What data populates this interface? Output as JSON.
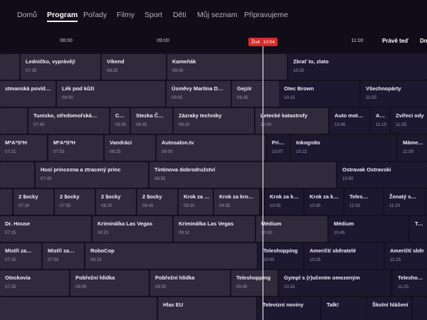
{
  "nav": {
    "items": [
      "Domů",
      "Program",
      "Pořady",
      "Filmy",
      "Sport",
      "Děti",
      "Můj seznam",
      "Připravujeme"
    ],
    "active": "Program"
  },
  "timebar": {
    "ticks": [
      "08:00",
      "09:00",
      "11:00"
    ],
    "live_label": "Živě",
    "live_time": "10:04",
    "now_button": "Právě teď",
    "next_button": "Dne"
  },
  "rows": [
    [
      {
        "title": "",
        "time": ""
      },
      {
        "title": "Ledničko, vyprávěj!",
        "time": "07:35"
      },
      {
        "title": "Víkend",
        "time": "08:25"
      },
      {
        "title": "Kameňák",
        "time": "09:05"
      },
      {
        "title": "Zkrať to, zlato",
        "time": "10:20"
      }
    ],
    [
      {
        "title": "stmanská povíd…",
        "time": ""
      },
      {
        "title": "Lék pod kůží",
        "time": "08:00"
      },
      {
        "title": "Úsměvy Martina D…",
        "time": "09:05"
      },
      {
        "title": "Gejzír",
        "time": "09:35"
      },
      {
        "title": "Otec Brown",
        "time": "10:15"
      },
      {
        "title": "Všechnopárty",
        "time": "11:05"
      }
    ],
    [
      {
        "title": "",
        "time": ""
      },
      {
        "title": "Tunisko, středomořská…",
        "time": "07:40"
      },
      {
        "title": "Cy…",
        "time": "08:30"
      },
      {
        "title": "Stezka Č…",
        "time": "08:45"
      },
      {
        "title": "Zázraky techniky",
        "time": "09:10"
      },
      {
        "title": "Letecké katastrofy",
        "time": "10:00"
      },
      {
        "title": "Auto mot…",
        "time": "10:45"
      },
      {
        "title": "Au…",
        "time": "11:10"
      },
      {
        "title": "Zvířecí ody",
        "time": "11:25"
      }
    ],
    [
      {
        "title": "M*A*S*H",
        "time": "07:21"
      },
      {
        "title": "M*A*S*H",
        "time": "07:53"
      },
      {
        "title": "Vandráci",
        "time": "08:25"
      },
      {
        "title": "Autosalon.tv",
        "time": "09:00"
      },
      {
        "title": "Pri…",
        "time": "10:07"
      },
      {
        "title": "Inkognito",
        "time": "10:22"
      },
      {
        "title": "Máme rád",
        "time": "11:30"
      }
    ],
    [
      {
        "title": "",
        "time": ""
      },
      {
        "title": "Husí princezna a ztracený princ",
        "time": "07:45"
      },
      {
        "title": "Tintinova dobrodružství",
        "time": "08:55"
      },
      {
        "title": "Ostravak Ostravski",
        "time": "10:50"
      }
    ],
    [
      {
        "title": "",
        "time": ""
      },
      {
        "title": "2 $ocky",
        "time": "07:30"
      },
      {
        "title": "2 $ocky",
        "time": "07:55"
      },
      {
        "title": "2 $ocky",
        "time": "08:20"
      },
      {
        "title": "2 $ocky",
        "time": "08:45"
      },
      {
        "title": "Krok za k…",
        "time": "09:10"
      },
      {
        "title": "Krok za krok…",
        "time": "09:35"
      },
      {
        "title": "Krok za k…",
        "time": "10:05"
      },
      {
        "title": "Krok za krok…",
        "time": "10:30"
      },
      {
        "title": "Teles…",
        "time": "11:00"
      },
      {
        "title": "Ženatý s…",
        "time": "11:20"
      },
      {
        "title": "Ženatý s",
        "time": ""
      }
    ],
    [
      {
        "title": "Dr. House",
        "time": "07:25"
      },
      {
        "title": "Kriminálka Las Vegas",
        "time": "08:20"
      },
      {
        "title": "Kriminálka Las Vegas",
        "time": "09:10"
      },
      {
        "title": "Médium",
        "time": "10:00"
      },
      {
        "title": "Médium",
        "time": "10:45"
      },
      {
        "title": "Teles",
        "time": ""
      }
    ],
    [
      {
        "title": "Mistři za…",
        "time": "07:25"
      },
      {
        "title": "Mistři za…",
        "time": "07:50"
      },
      {
        "title": "RoboCop",
        "time": "08:15"
      },
      {
        "title": "Teleshopping",
        "time": "10:00"
      },
      {
        "title": "Američtí sběratelé",
        "time": "10:25"
      },
      {
        "title": "Američtí sběr",
        "time": "11:25"
      }
    ],
    [
      {
        "title": "Oteckovia",
        "time": "07:25"
      },
      {
        "title": "Pobřežní hlídka",
        "time": "08:05"
      },
      {
        "title": "Pobřežní hlídka",
        "time": "08:55"
      },
      {
        "title": "Teleshopping",
        "time": "09:45"
      },
      {
        "title": "Gympl s (r)učením omezeným",
        "time": "10:15"
      },
      {
        "title": "Teleshoppin",
        "time": "11:25"
      }
    ],
    [
      {
        "title": "",
        "time": ""
      },
      {
        "title": "Hlas EU",
        "time": ""
      },
      {
        "title": "Televizní noviny",
        "time": ""
      },
      {
        "title": "Talk!",
        "time": ""
      },
      {
        "title": "Školní hlášení",
        "time": ""
      },
      {
        "title": "",
        "time": ""
      }
    ]
  ]
}
